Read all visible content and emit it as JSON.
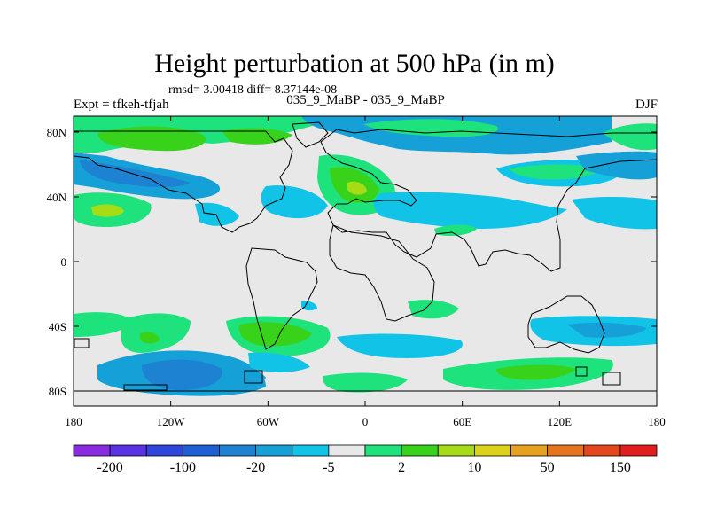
{
  "map": {
    "title": "Height perturbation at 500 hPa (in m)",
    "stats": "rmsd= 3.00418 diff= 8.37144e-08",
    "expt": "Expt = tfkeh-tfjah",
    "case": "035_9_MaBP - 035_9_MaBP",
    "season": "DJF",
    "lat_ticks": [
      "80N",
      "40N",
      "0",
      "40S",
      "80S"
    ],
    "lon_ticks": [
      "180",
      "120W",
      "60W",
      "0",
      "60E",
      "120E",
      "180"
    ]
  },
  "colorbar": {
    "colors": [
      "#8a2be2",
      "#5a32e6",
      "#2e46dc",
      "#1e5fd6",
      "#1e82d2",
      "#16a0d8",
      "#12c3e8",
      "#e8e8e8",
      "#1ee27c",
      "#39d21a",
      "#a6dc16",
      "#dcd21a",
      "#e6a21e",
      "#e6741e",
      "#e4461e",
      "#e01e1e"
    ],
    "labels": [
      "-200",
      "-100",
      "-20",
      "-5",
      "2",
      "10",
      "50",
      "150"
    ]
  },
  "palette": {
    "neutral": "#e8e8e8",
    "blue_light": "#12c3e8",
    "blue_mid": "#16a0d8",
    "blue_dark": "#1e82d2",
    "green": "#1ee27c",
    "green_dark": "#39d21a",
    "yellow_green": "#a6dc16"
  }
}
